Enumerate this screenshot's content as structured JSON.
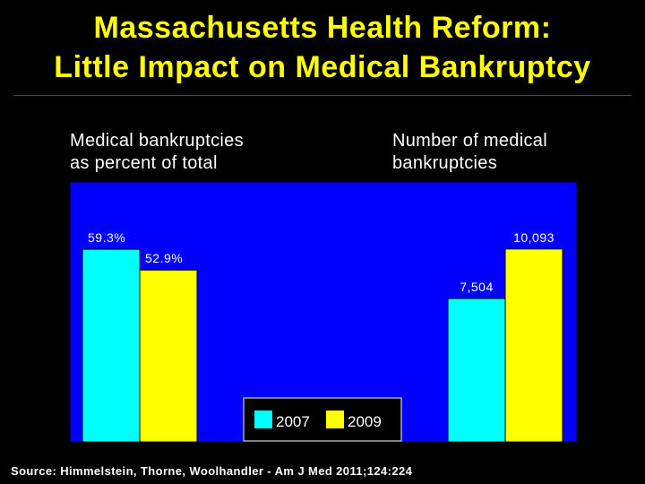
{
  "title": {
    "line1": "Massachusetts Health Reform:",
    "line2": "Little Impact on Medical Bankruptcy"
  },
  "panel_labels": {
    "left_line1": "Medical bankruptcies",
    "left_line2": "as percent of total",
    "right_line1": "Number of medical",
    "right_line2": "bankruptcies"
  },
  "source": "Source: Himmelstein, Thorne, Woolhandler - Am J Med 2011;124:224",
  "colors": {
    "plot_bg": "#0000ff",
    "series_2007": "#00ffff",
    "series_2009": "#ffff00",
    "title": "#ffff00",
    "background": "#000000"
  },
  "chart_data": [
    {
      "type": "bar",
      "categories": [
        ""
      ],
      "series": [
        {
          "name": "2007",
          "values": [
            59.3
          ],
          "labels": [
            "59.3%"
          ]
        },
        {
          "name": "2009",
          "values": [
            52.9
          ],
          "labels": [
            "52.9%"
          ]
        }
      ],
      "ylim": [
        0,
        80
      ],
      "legend": "bottom-center"
    },
    {
      "type": "bar",
      "categories": [
        ""
      ],
      "series": [
        {
          "name": "2007",
          "values": [
            7504
          ],
          "labels": [
            "7,504"
          ]
        },
        {
          "name": "2009",
          "values": [
            10093
          ],
          "labels": [
            "10,093"
          ]
        }
      ],
      "ylim": [
        0,
        13600
      ],
      "legend": "bottom-center"
    }
  ],
  "legend": {
    "items": [
      "2007",
      "2009"
    ]
  }
}
